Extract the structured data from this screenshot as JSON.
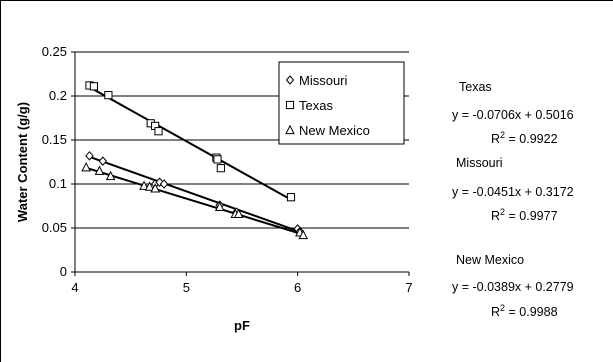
{
  "chart_data": {
    "type": "scatter",
    "xlabel": "pF",
    "ylabel": "Water Content (g/g)",
    "xlim": [
      4,
      7
    ],
    "ylim": [
      0,
      0.25
    ],
    "xticks": [
      "4",
      "5",
      "6",
      "7"
    ],
    "yticks": [
      "0",
      "0.05",
      "0.1",
      "0.15",
      "0.2",
      "0.25"
    ],
    "grid": "horizontal",
    "legend_position": "top-right",
    "series": [
      {
        "name": "Missouri",
        "marker": "diamond",
        "points": [
          [
            4.13,
            0.132
          ],
          [
            4.25,
            0.126
          ],
          [
            4.72,
            0.1
          ],
          [
            4.76,
            0.102
          ],
          [
            4.8,
            0.1
          ],
          [
            5.3,
            0.076
          ],
          [
            5.45,
            0.068
          ],
          [
            6.0,
            0.049
          ],
          [
            6.02,
            0.046
          ]
        ],
        "trend": {
          "slope": -0.0451,
          "intercept": 0.3172
        }
      },
      {
        "name": "Texas",
        "marker": "square",
        "points": [
          [
            4.13,
            0.212
          ],
          [
            4.17,
            0.211
          ],
          [
            4.3,
            0.201
          ],
          [
            4.68,
            0.169
          ],
          [
            4.72,
            0.166
          ],
          [
            4.75,
            0.16
          ],
          [
            5.27,
            0.13
          ],
          [
            5.28,
            0.128
          ],
          [
            5.31,
            0.118
          ],
          [
            5.94,
            0.085
          ]
        ],
        "trend": {
          "slope": -0.0706,
          "intercept": 0.5016
        }
      },
      {
        "name": "New Mexico",
        "marker": "triangle",
        "points": [
          [
            4.1,
            0.119
          ],
          [
            4.22,
            0.115
          ],
          [
            4.32,
            0.109
          ],
          [
            4.62,
            0.098
          ],
          [
            4.67,
            0.097
          ],
          [
            4.72,
            0.095
          ],
          [
            5.3,
            0.074
          ],
          [
            5.44,
            0.066
          ],
          [
            5.47,
            0.066
          ],
          [
            6.02,
            0.045
          ],
          [
            6.05,
            0.042
          ]
        ],
        "trend": {
          "slope": -0.0389,
          "intercept": 0.2779
        }
      }
    ]
  },
  "annotations": [
    {
      "label": "Texas",
      "equation": "y = -0.0706x + 0.5016",
      "r2_prefix": "R",
      "r2_suffix": " = 0.9922"
    },
    {
      "label": "Missouri",
      "equation": "y = -0.0451x + 0.3172",
      "r2_prefix": "R",
      "r2_suffix": " = 0.9977"
    },
    {
      "label": "New Mexico",
      "equation": "y = -0.0389x + 0.2779",
      "r2_prefix": "R",
      "r2_suffix": " = 0.9988"
    }
  ]
}
